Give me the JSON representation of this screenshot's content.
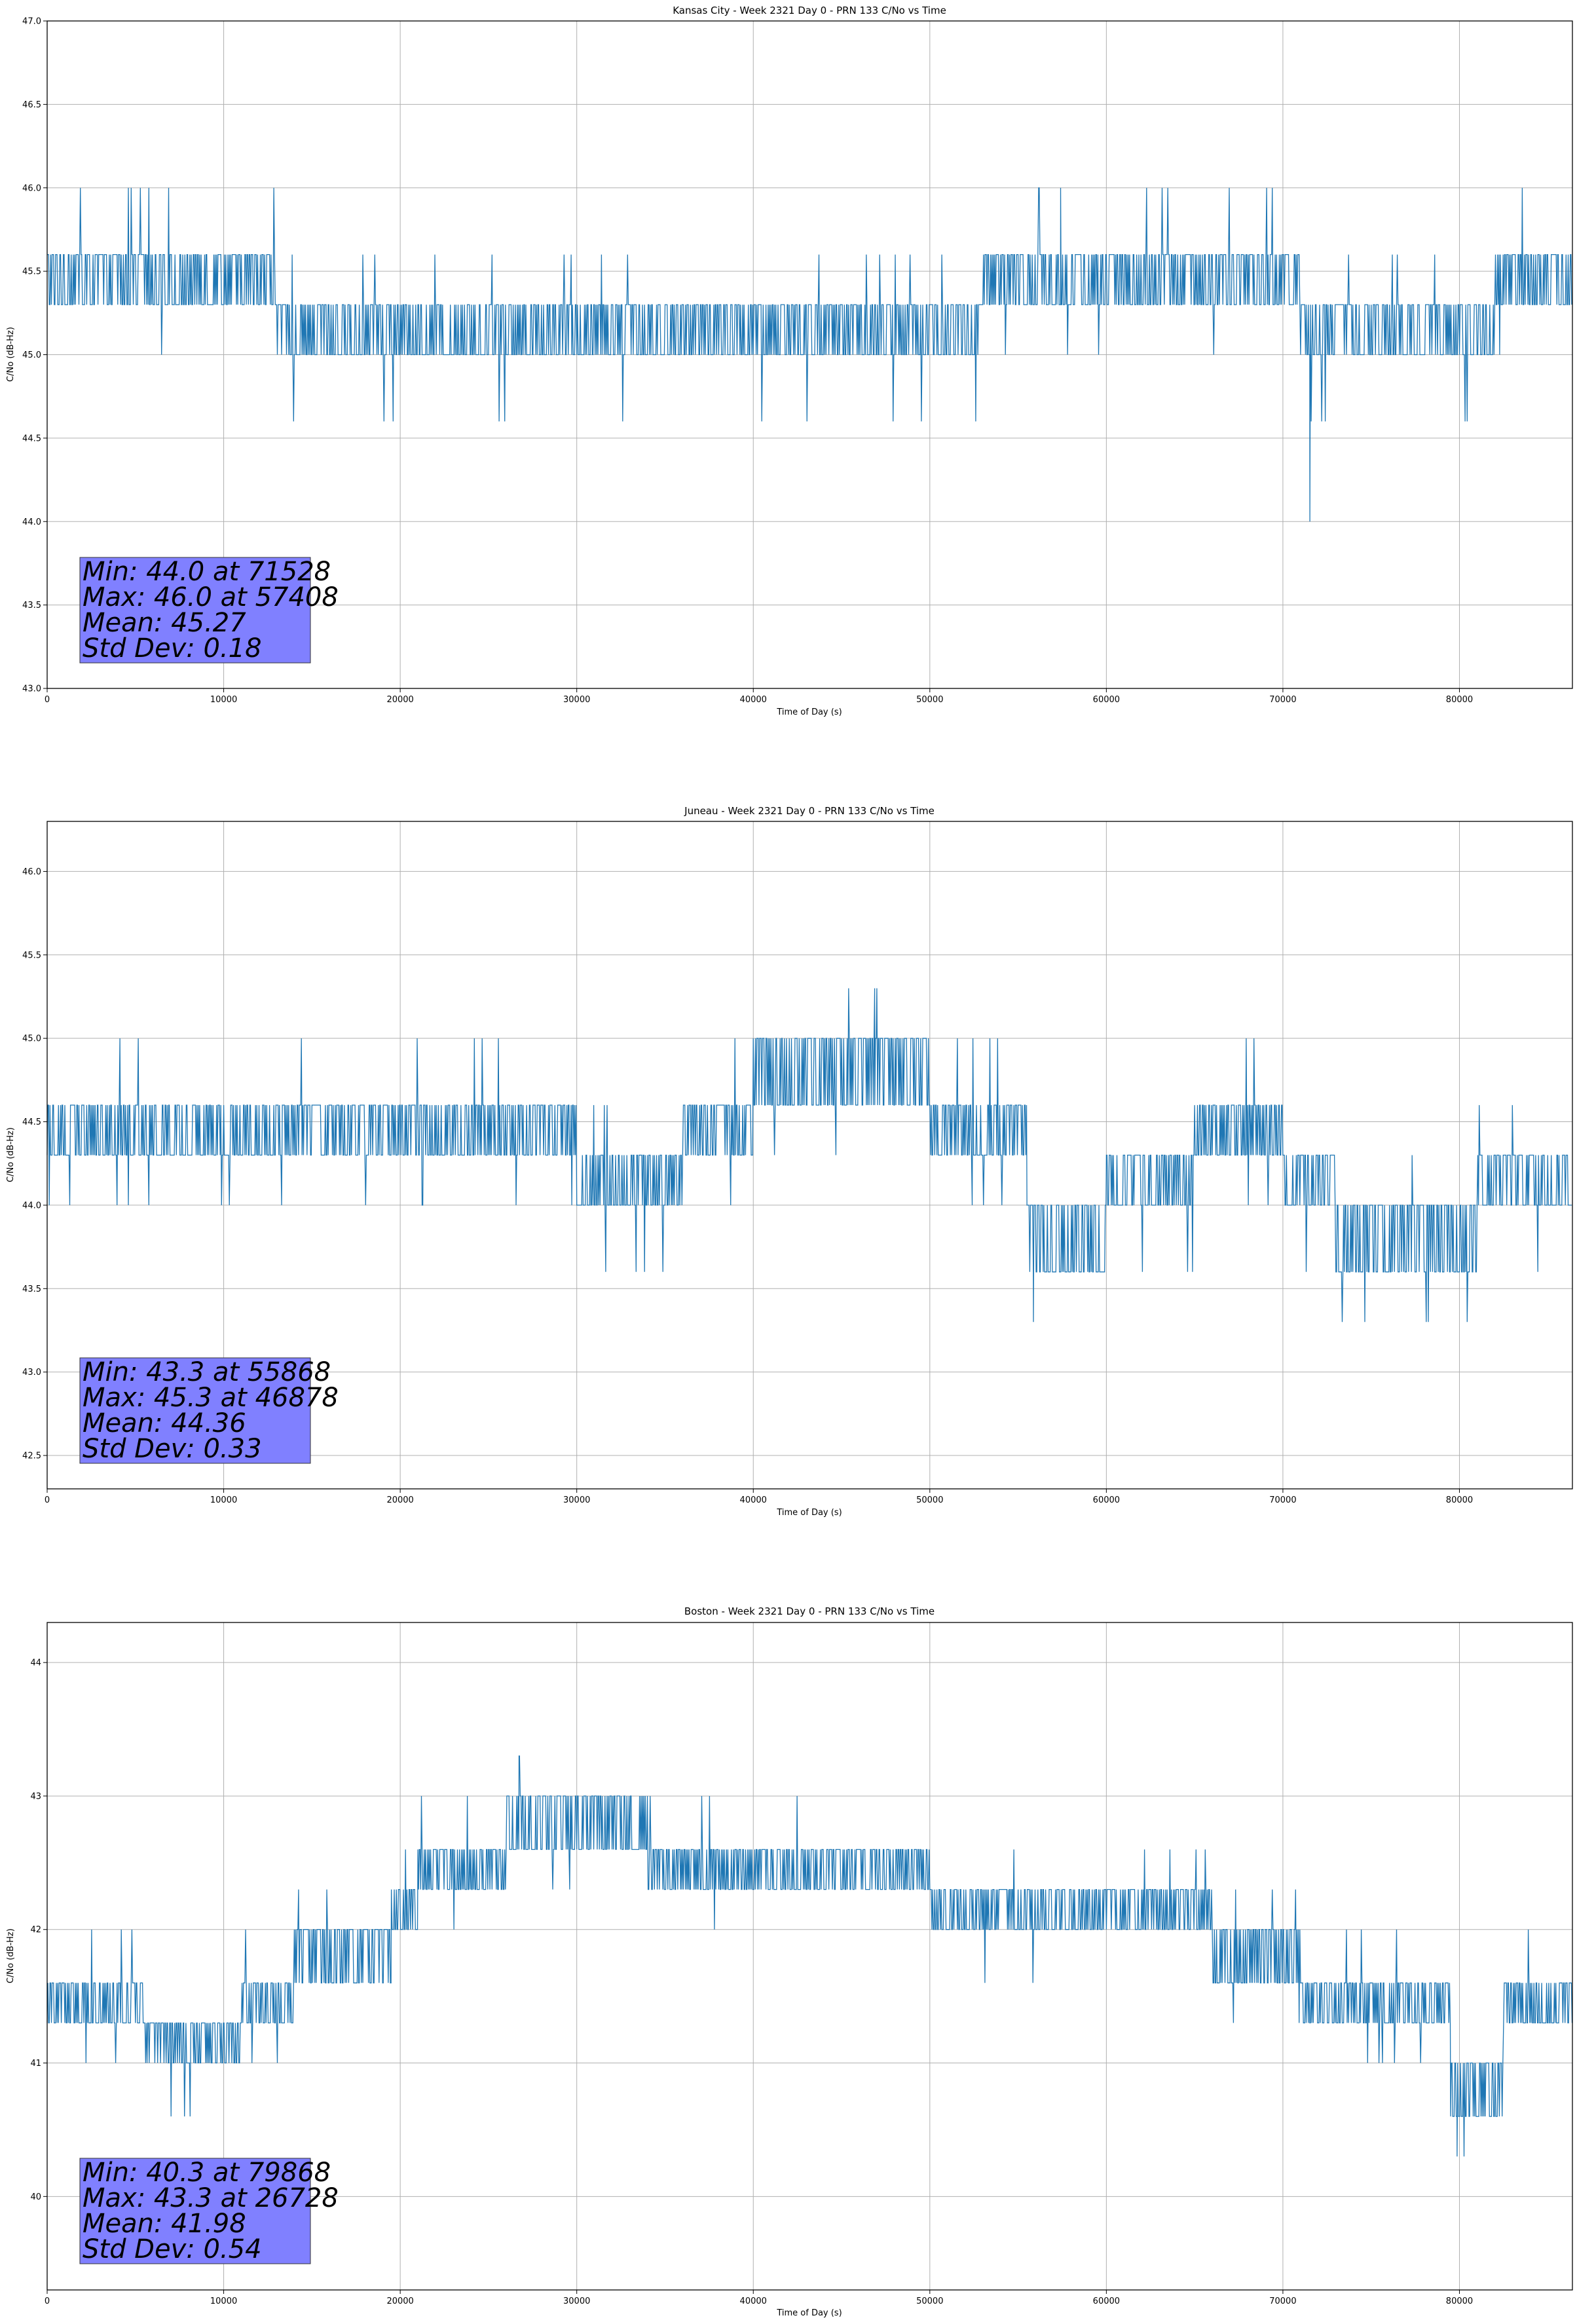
{
  "chart_data": [
    {
      "type": "line",
      "title": "Kansas City - Week 2321 Day 0 - PRN 133 C/No vs Time",
      "xlabel": "Time of Day (s)",
      "ylabel": "C/No (dB-Hz)",
      "xlim": [
        0,
        86400
      ],
      "ylim": [
        43.0,
        47.0
      ],
      "xticks": [
        0,
        10000,
        20000,
        30000,
        40000,
        50000,
        60000,
        70000,
        80000
      ],
      "xtick_labels": [
        "0",
        "10000",
        "20000",
        "30000",
        "40000",
        "50000",
        "60000",
        "70000",
        "80000"
      ],
      "yticks": [
        43.0,
        43.5,
        44.0,
        44.5,
        45.0,
        45.5,
        46.0,
        46.5,
        47.0
      ],
      "ytick_labels": [
        "43.0",
        "43.5",
        "44.0",
        "44.5",
        "45.0",
        "45.5",
        "46.0",
        "46.5",
        "47.0"
      ],
      "grid": true,
      "color": "#1f77b4",
      "quantization_levels": [
        44.0,
        44.6,
        45.0,
        45.3,
        45.6,
        46.0
      ],
      "baseline_segments": [
        {
          "x": [
            0,
            13000
          ],
          "levels": [
            45.3,
            45.6
          ]
        },
        {
          "x": [
            13000,
            43000
          ],
          "levels": [
            45.0,
            45.3
          ]
        },
        {
          "x": [
            43000,
            53000
          ],
          "levels": [
            45.0,
            45.3
          ]
        },
        {
          "x": [
            53000,
            71000
          ],
          "levels": [
            45.3,
            45.6
          ]
        },
        {
          "x": [
            71000,
            82000
          ],
          "levels": [
            45.0,
            45.3
          ]
        },
        {
          "x": [
            82000,
            86400
          ],
          "levels": [
            45.3,
            45.6
          ]
        }
      ],
      "extremes": {
        "min": {
          "x": 71528,
          "y": 44.0
        },
        "max": {
          "x": 57408,
          "y": 46.0
        }
      },
      "stats": {
        "min_line": "Min: 44.0 at 71528",
        "max_line": "Max: 46.0 at 57408",
        "mean_line": "Mean: 45.27",
        "std_line": "Std Dev: 0.18"
      }
    },
    {
      "type": "line",
      "title": "Juneau - Week 2321 Day 0 - PRN 133 C/No vs Time",
      "xlabel": "Time of Day (s)",
      "ylabel": "C/No (dB-Hz)",
      "xlim": [
        0,
        86400
      ],
      "ylim": [
        42.3,
        46.3
      ],
      "xticks": [
        0,
        10000,
        20000,
        30000,
        40000,
        50000,
        60000,
        70000,
        80000
      ],
      "xtick_labels": [
        "0",
        "10000",
        "20000",
        "30000",
        "40000",
        "50000",
        "60000",
        "70000",
        "80000"
      ],
      "yticks": [
        42.5,
        43.0,
        43.5,
        44.0,
        44.5,
        45.0,
        45.5,
        46.0
      ],
      "ytick_labels": [
        "42.5",
        "43.0",
        "43.5",
        "44.0",
        "44.5",
        "45.0",
        "45.5",
        "46.0"
      ],
      "grid": true,
      "color": "#1f77b4",
      "quantization_levels": [
        43.3,
        43.6,
        44.0,
        44.3,
        44.6,
        45.0,
        45.3
      ],
      "baseline_segments": [
        {
          "x": [
            0,
            30000
          ],
          "levels": [
            44.3,
            44.6
          ]
        },
        {
          "x": [
            30000,
            36000
          ],
          "levels": [
            44.0,
            44.3
          ]
        },
        {
          "x": [
            36000,
            40000
          ],
          "levels": [
            44.3,
            44.6
          ]
        },
        {
          "x": [
            40000,
            50000
          ],
          "levels": [
            44.6,
            45.0
          ]
        },
        {
          "x": [
            50000,
            55500
          ],
          "levels": [
            44.3,
            44.6
          ]
        },
        {
          "x": [
            55500,
            60000
          ],
          "levels": [
            43.6,
            44.0
          ]
        },
        {
          "x": [
            60000,
            65000
          ],
          "levels": [
            44.0,
            44.3
          ]
        },
        {
          "x": [
            65000,
            70000
          ],
          "levels": [
            44.3,
            44.6
          ]
        },
        {
          "x": [
            70000,
            73000
          ],
          "levels": [
            44.0,
            44.3
          ]
        },
        {
          "x": [
            73000,
            81000
          ],
          "levels": [
            43.6,
            44.0
          ]
        },
        {
          "x": [
            81000,
            86400
          ],
          "levels": [
            44.0,
            44.3
          ]
        }
      ],
      "extremes": {
        "min": {
          "x": 55868,
          "y": 43.3
        },
        "max": {
          "x": 46878,
          "y": 45.3
        }
      },
      "stats": {
        "min_line": "Min: 43.3 at 55868",
        "max_line": "Max: 45.3 at 46878",
        "mean_line": "Mean: 44.36",
        "std_line": "Std Dev: 0.33"
      }
    },
    {
      "type": "line",
      "title": "Boston - Week 2321 Day 0 - PRN 133 C/No vs Time",
      "xlabel": "Time of Day (s)",
      "ylabel": "C/No (dB-Hz)",
      "xlim": [
        0,
        86400
      ],
      "ylim": [
        39.3,
        44.3
      ],
      "xticks": [
        0,
        10000,
        20000,
        30000,
        40000,
        50000,
        60000,
        70000,
        80000
      ],
      "xtick_labels": [
        "0",
        "10000",
        "20000",
        "30000",
        "40000",
        "50000",
        "60000",
        "70000",
        "80000"
      ],
      "yticks": [
        40,
        41,
        42,
        43,
        44
      ],
      "ytick_labels": [
        "40",
        "41",
        "42",
        "43",
        "44"
      ],
      "grid": true,
      "color": "#1f77b4",
      "quantization_levels": [
        40.3,
        40.6,
        41.0,
        41.3,
        41.6,
        42.0,
        42.3,
        42.6,
        43.0,
        43.3
      ],
      "baseline_segments": [
        {
          "x": [
            0,
            5500
          ],
          "levels": [
            41.3,
            41.6
          ]
        },
        {
          "x": [
            5500,
            11000
          ],
          "levels": [
            41.0,
            41.3
          ]
        },
        {
          "x": [
            11000,
            14000
          ],
          "levels": [
            41.3,
            41.6
          ]
        },
        {
          "x": [
            14000,
            19500
          ],
          "levels": [
            41.6,
            42.0
          ]
        },
        {
          "x": [
            19500,
            21000
          ],
          "levels": [
            42.0,
            42.3
          ]
        },
        {
          "x": [
            21000,
            26000
          ],
          "levels": [
            42.3,
            42.6
          ]
        },
        {
          "x": [
            26000,
            34000
          ],
          "levels": [
            42.6,
            43.0
          ]
        },
        {
          "x": [
            34000,
            50000
          ],
          "levels": [
            42.3,
            42.6
          ]
        },
        {
          "x": [
            50000,
            66000
          ],
          "levels": [
            42.0,
            42.3
          ]
        },
        {
          "x": [
            66000,
            71000
          ],
          "levels": [
            41.6,
            42.0
          ]
        },
        {
          "x": [
            71000,
            79500
          ],
          "levels": [
            41.3,
            41.6
          ]
        },
        {
          "x": [
            79500,
            82500
          ],
          "levels": [
            40.6,
            41.0
          ]
        },
        {
          "x": [
            82500,
            86400
          ],
          "levels": [
            41.3,
            41.6
          ]
        }
      ],
      "extremes": {
        "min": {
          "x": 79868,
          "y": 40.3
        },
        "max": {
          "x": 26728,
          "y": 43.3
        }
      },
      "stats": {
        "min_line": "Min: 40.3 at 79868",
        "max_line": "Max: 43.3 at 26728",
        "mean_line": "Mean: 41.98",
        "std_line": "Std Dev: 0.54"
      }
    }
  ]
}
